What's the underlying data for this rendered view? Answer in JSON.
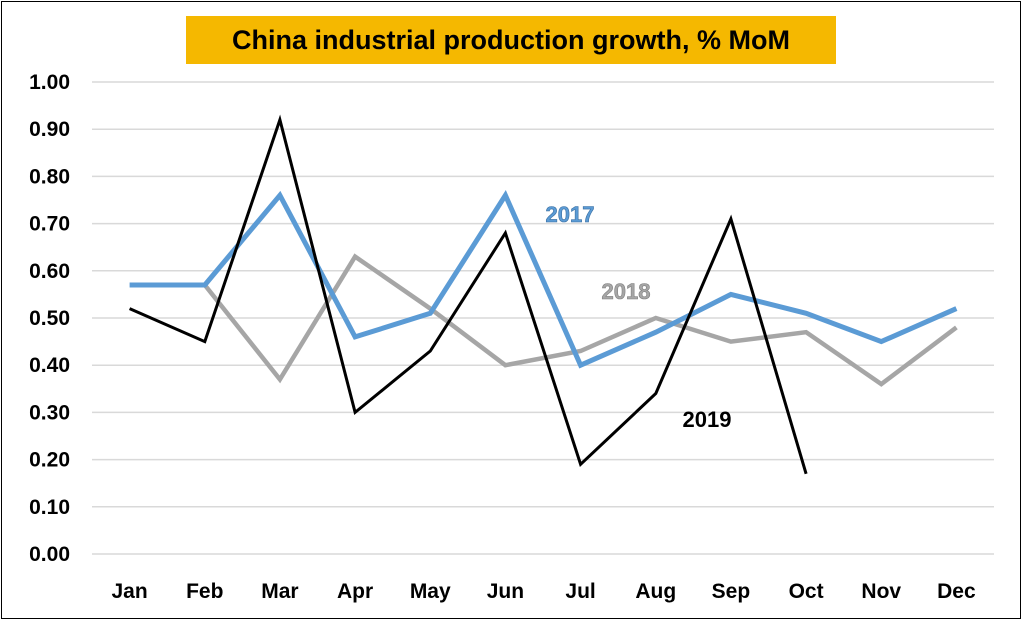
{
  "chart_data": {
    "type": "line",
    "title": "China industrial production growth, % MoM",
    "categories": [
      "Jan",
      "Feb",
      "Mar",
      "Apr",
      "May",
      "Jun",
      "Jul",
      "Aug",
      "Sep",
      "Oct",
      "Nov",
      "Dec"
    ],
    "ylim": [
      0,
      1.0
    ],
    "y_ticks": [
      "0.00",
      "0.10",
      "0.20",
      "0.30",
      "0.40",
      "0.50",
      "0.60",
      "0.70",
      "0.80",
      "0.90",
      "1.00"
    ],
    "grid": "horizontal",
    "series": [
      {
        "name": "2017",
        "color": "#5B9BD5",
        "values": [
          0.57,
          0.57,
          0.76,
          0.46,
          0.51,
          0.76,
          0.4,
          0.47,
          0.55,
          0.51,
          0.45,
          0.52
        ]
      },
      {
        "name": "2018",
        "color": "#A6A6A6",
        "values": [
          null,
          0.57,
          0.37,
          0.63,
          0.52,
          0.4,
          0.43,
          0.5,
          0.45,
          0.47,
          0.36,
          0.48
        ]
      },
      {
        "name": "2019",
        "color": "#000000",
        "values": [
          0.52,
          0.45,
          0.92,
          0.3,
          0.43,
          0.68,
          0.19,
          0.34,
          0.71,
          0.17,
          null,
          null
        ]
      }
    ]
  },
  "colors": {
    "title_background": "#F5B800",
    "grid": "#D9D9D9"
  }
}
